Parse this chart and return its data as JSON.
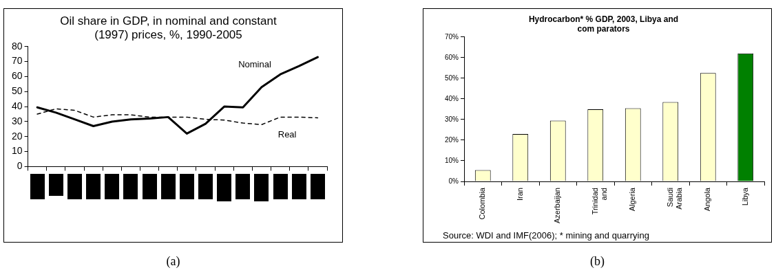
{
  "chart_data": [
    {
      "type": "line",
      "title": "Oil share in GDP, in nominal and constant (1997) prices, %, 1990-2005",
      "categories": [
        null,
        null,
        null,
        null,
        null,
        null,
        null,
        null,
        null,
        null,
        null,
        null,
        null,
        null,
        null,
        null
      ],
      "series": [
        {
          "name": "Nominal",
          "color": "#000000",
          "line_style": "solid",
          "values": [
            39.5,
            36,
            31.5,
            27,
            30,
            31.5,
            32,
            33,
            22,
            28.5,
            40,
            39.5,
            53,
            61.5,
            67,
            73
          ]
        },
        {
          "name": "Real",
          "color": "#000000",
          "line_style": "dashed",
          "values": [
            35,
            38.5,
            37.5,
            33,
            34.5,
            34.5,
            33,
            33,
            33,
            31.5,
            31,
            29,
            28,
            33,
            33,
            32.5
          ]
        }
      ],
      "ylim": [
        0,
        80
      ],
      "yticks": [
        0,
        10,
        20,
        30,
        40,
        50,
        60,
        70,
        80
      ],
      "grid": false,
      "legend": false,
      "marker": "none",
      "annotations": [
        "(a)"
      ]
    },
    {
      "type": "bar",
      "title": "Hydrocarbon* % GDP, 2003, Libya and com parators",
      "categories": [
        "Colombia",
        "Iran",
        "Azerbaijan",
        "Trinidad and",
        "Algeria",
        "Saudi Arabia",
        "Angola",
        "Libya"
      ],
      "values": [
        5.5,
        23,
        29.5,
        35,
        35.5,
        38.5,
        52.5,
        62
      ],
      "colors": [
        "#ffffcc",
        "#ffffcc",
        "#ffffcc",
        "#ffffcc",
        "#ffffcc",
        "#ffffcc",
        "#ffffcc",
        "#008000"
      ],
      "ylim": [
        0,
        70
      ],
      "yticks": [
        {
          "value": 0,
          "label": "0%"
        },
        {
          "value": 10,
          "label": "10%"
        },
        {
          "value": 20,
          "label": "20%"
        },
        {
          "value": 30,
          "label": "30%"
        },
        {
          "value": 40,
          "label": "40%"
        },
        {
          "value": 50,
          "label": "50%"
        },
        {
          "value": 60,
          "label": "60%"
        },
        {
          "value": 70,
          "label": "70%"
        }
      ],
      "grid": false,
      "legend": false,
      "annotations": [
        "Source: WDI and IMF(2006); * mining and quarrying",
        "(b)"
      ]
    }
  ]
}
